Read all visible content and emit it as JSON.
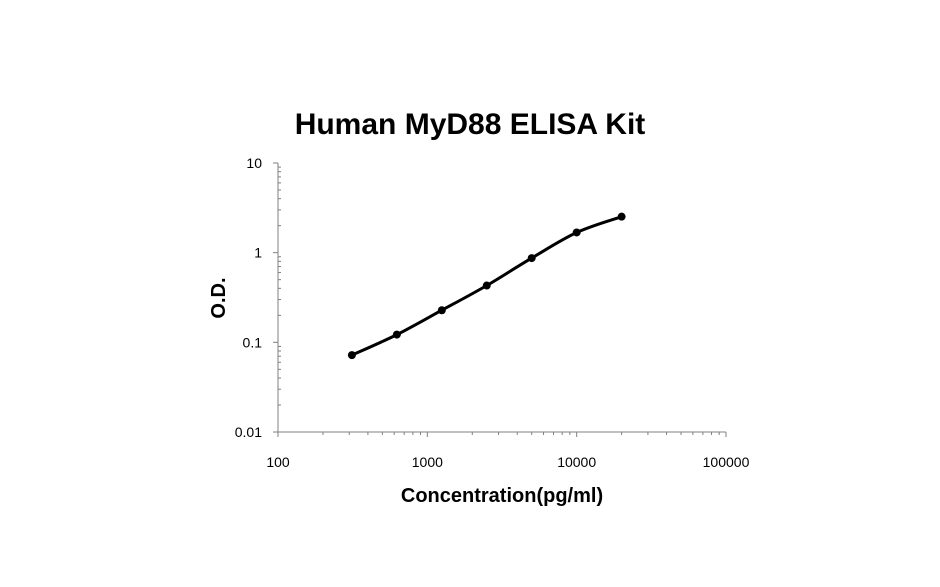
{
  "chart_data": {
    "type": "line",
    "title": "Human MyD88 ELISA Kit",
    "xlabel": "Concentration(pg/ml)",
    "ylabel": "O.D.",
    "x_scale": "log",
    "y_scale": "log",
    "xlim": [
      100,
      100000
    ],
    "ylim": [
      0.01,
      10
    ],
    "x_ticks": [
      "100",
      "1000",
      "10000",
      "100000"
    ],
    "y_ticks": [
      "0.01",
      "0.1",
      "1",
      "10"
    ],
    "grid": false,
    "series": [
      {
        "x": [
          312.5,
          625,
          1250,
          2500,
          5000,
          10000,
          20000
        ],
        "y": [
          0.072,
          0.122,
          0.228,
          0.43,
          0.87,
          1.68,
          2.52
        ]
      }
    ],
    "colors": {
      "line": "#000000",
      "marker": "#000000"
    }
  }
}
